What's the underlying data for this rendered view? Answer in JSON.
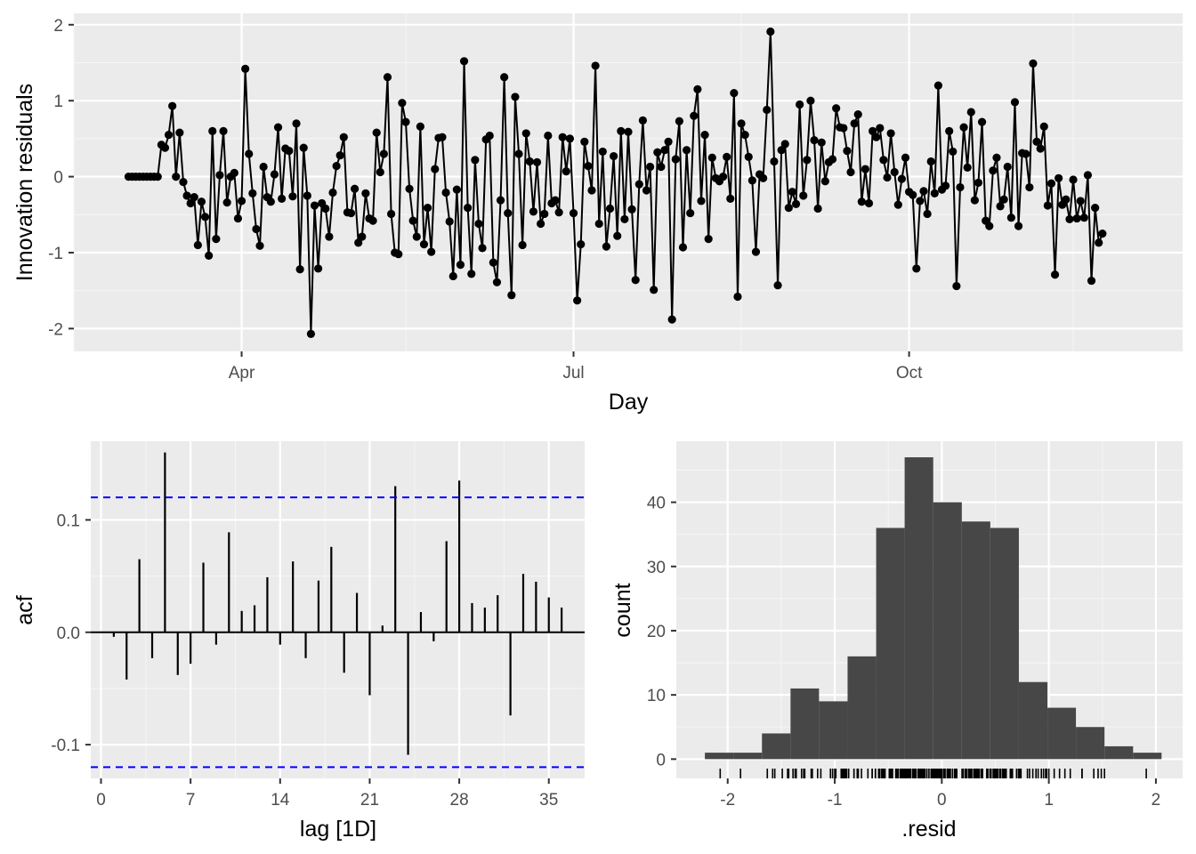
{
  "chart_data": [
    {
      "type": "line",
      "xlabel": "Day",
      "ylabel": "Innovation residuals",
      "x_date_range": [
        "2016-03-01",
        "2016-11-30"
      ],
      "xlim_dates": [
        "2016-02-15",
        "2016-12-15"
      ],
      "ylim": [
        -2.3,
        2.15
      ],
      "x_ticks": [
        {
          "date": "2016-04-01",
          "label": "Apr"
        },
        {
          "date": "2016-07-01",
          "label": "Jul"
        },
        {
          "date": "2016-10-01",
          "label": "Oct"
        }
      ],
      "x_minor_ticks": [
        "2016-02-15",
        "2016-05-16",
        "2016-08-16",
        "2016-11-15"
      ],
      "y_ticks": [
        -2,
        -1,
        0,
        1,
        2
      ],
      "grid": true,
      "marker": "point",
      "color": "#000000",
      "values": [
        0,
        0,
        0,
        0,
        0,
        0,
        0,
        0,
        0,
        0.42,
        0.38,
        0.55,
        0.93,
        0.0,
        0.58,
        -0.07,
        -0.25,
        -0.35,
        -0.27,
        -0.9,
        -0.33,
        -0.53,
        -1.04,
        0.6,
        -0.82,
        0.02,
        0.6,
        -0.34,
        0.0,
        0.05,
        -0.55,
        -0.32,
        1.42,
        0.3,
        -0.22,
        -0.69,
        -0.91,
        0.13,
        -0.27,
        -0.33,
        0.03,
        0.65,
        -0.29,
        0.37,
        0.34,
        -0.26,
        0.7,
        -1.22,
        0.38,
        -0.25,
        -2.07,
        -0.38,
        -1.21,
        -0.35,
        -0.42,
        -0.79,
        -0.21,
        0.14,
        0.28,
        0.52,
        -0.47,
        -0.48,
        -0.16,
        -0.87,
        -0.79,
        -0.22,
        -0.55,
        -0.58,
        0.58,
        0.06,
        0.3,
        1.31,
        -0.49,
        -1.0,
        -1.02,
        0.97,
        0.72,
        -0.16,
        -0.58,
        -0.79,
        0.66,
        -0.89,
        -0.41,
        -0.99,
        0.1,
        0.51,
        0.52,
        -0.21,
        -0.59,
        -1.31,
        -0.17,
        -1.16,
        1.52,
        -0.41,
        -1.28,
        0.22,
        -0.62,
        -0.94,
        0.49,
        0.54,
        -1.13,
        -1.39,
        -0.31,
        1.31,
        -0.48,
        -1.56,
        1.05,
        0.3,
        -0.9,
        0.57,
        0.2,
        -0.46,
        0.19,
        -0.62,
        -0.49,
        0.54,
        -0.35,
        -0.31,
        -0.47,
        0.52,
        0.07,
        0.5,
        -0.48,
        -1.63,
        -0.89,
        0.46,
        0.14,
        -0.18,
        1.46,
        -0.62,
        0.33,
        -0.92,
        -0.42,
        0.27,
        -0.78,
        0.6,
        -0.56,
        0.59,
        -0.43,
        -1.36,
        -0.1,
        0.74,
        -0.18,
        0.13,
        -1.49,
        0.32,
        0.13,
        0.35,
        0.46,
        -1.88,
        0.23,
        0.73,
        -0.93,
        0.35,
        -0.48,
        0.8,
        1.15,
        -0.32,
        0.55,
        -0.82,
        0.25,
        -0.02,
        -0.06,
        0.0,
        0.26,
        -0.29,
        1.1,
        -1.58,
        0.7,
        0.55,
        0.26,
        -0.05,
        -0.99,
        0.03,
        -0.02,
        0.88,
        1.91,
        0.2,
        -1.43,
        0.35,
        0.43,
        -0.41,
        -0.2,
        -0.36,
        0.95,
        -0.25,
        0.22,
        1.0,
        0.48,
        -0.42,
        0.45,
        -0.06,
        0.19,
        0.23,
        0.9,
        0.65,
        0.64,
        0.34,
        0.06,
        0.7,
        0.82,
        -0.33,
        0.1,
        -0.35,
        0.6,
        0.52,
        0.64,
        0.22,
        -0.01,
        0.57,
        0.06,
        -0.37,
        -0.03,
        0.25,
        -0.2,
        -0.24,
        -1.21,
        -0.32,
        -0.19,
        -0.49,
        0.2,
        -0.22,
        1.2,
        -0.17,
        -0.12,
        0.6,
        0.33,
        -1.44,
        -0.14,
        0.65,
        0.12,
        0.85,
        -0.31,
        -0.08,
        0.72,
        -0.58,
        -0.65,
        0.08,
        0.25,
        -0.39,
        -0.3,
        0.13,
        -0.54,
        0.98,
        -0.65,
        0.31,
        0.3,
        -0.14,
        1.49,
        0.46,
        0.37,
        0.66,
        -0.38,
        -0.09,
        -1.29,
        -0.02,
        -0.37,
        -0.3,
        -0.56,
        -0.04,
        -0.55,
        -0.32,
        -0.54,
        0.02,
        -1.37,
        -0.41,
        -0.87,
        -0.75
      ]
    },
    {
      "type": "bar",
      "subtype": "acf",
      "xlabel": "lag [1D]",
      "ylabel": "acf",
      "x_ticks": [
        0,
        7,
        14,
        21,
        28,
        35
      ],
      "xlim": [
        -0.8,
        37.8
      ],
      "ylim": [
        -0.13,
        0.17
      ],
      "y_ticks": [
        -0.1,
        0.0,
        0.1
      ],
      "y_tick_labels": [
        "-0.1",
        "0.0",
        "0.1"
      ],
      "confidence_bound": 0.12,
      "confidence_color": "#0000ff",
      "lags": [
        1,
        2,
        3,
        4,
        5,
        6,
        7,
        8,
        9,
        10,
        11,
        12,
        13,
        14,
        15,
        16,
        17,
        18,
        19,
        20,
        21,
        22,
        23,
        24,
        25,
        26,
        27,
        28,
        29,
        30,
        31,
        32,
        33,
        34,
        35,
        36
      ],
      "values": [
        -0.004,
        -0.042,
        0.065,
        -0.023,
        0.16,
        -0.038,
        -0.028,
        0.062,
        -0.011,
        0.089,
        0.019,
        0.024,
        0.049,
        -0.011,
        0.063,
        -0.023,
        0.046,
        0.076,
        -0.036,
        0.035,
        -0.056,
        0.006,
        0.13,
        -0.109,
        0.018,
        -0.008,
        0.081,
        0.135,
        0.026,
        0.022,
        0.033,
        -0.074,
        0.052,
        0.045,
        0.031,
        0.022
      ]
    },
    {
      "type": "bar",
      "subtype": "histogram",
      "xlabel": ".resid",
      "ylabel": "count",
      "x_ticks": [
        -2,
        -1,
        0,
        1,
        2
      ],
      "xlim": [
        -2.48,
        2.25
      ],
      "ylim": [
        -3,
        49.5
      ],
      "y_ticks": [
        0,
        10,
        20,
        30,
        40
      ],
      "bin_edges": [
        -2.213,
        -1.947,
        -1.68,
        -1.413,
        -1.147,
        -0.88,
        -0.613,
        -0.347,
        -0.08,
        0.187,
        0.453,
        0.72,
        0.987,
        1.253,
        1.52,
        1.787,
        2.053
      ],
      "counts": [
        1,
        1,
        4,
        11,
        9,
        16,
        36,
        47,
        40,
        37,
        36,
        12,
        8,
        5,
        2,
        1
      ],
      "bar_color": "#474747",
      "rug": true
    }
  ]
}
